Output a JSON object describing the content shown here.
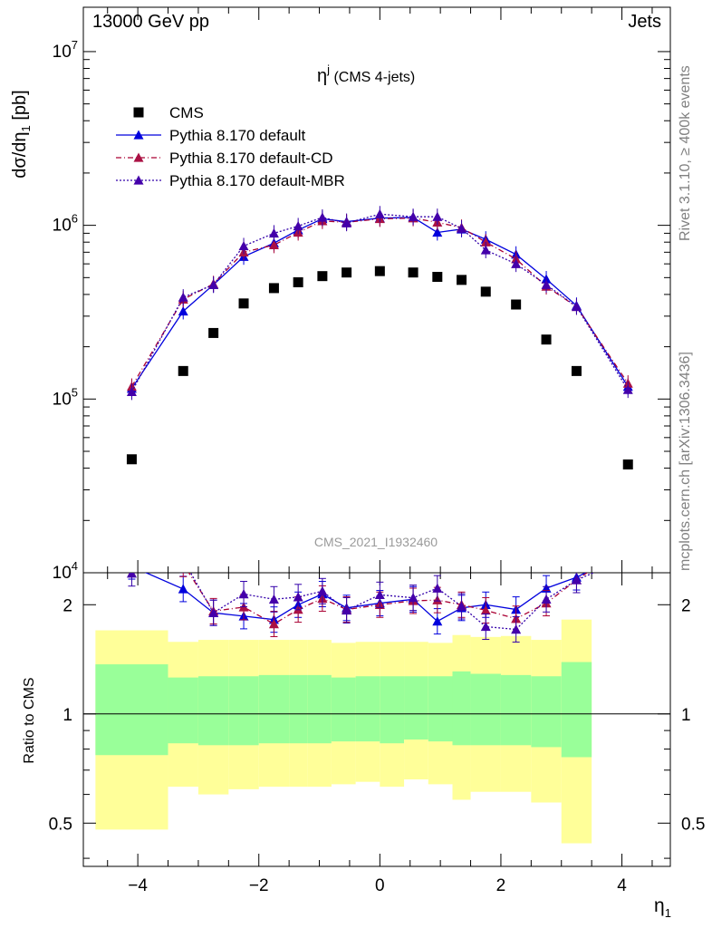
{
  "header": {
    "left": "13000 GeV pp",
    "right": "Jets"
  },
  "side": {
    "rivet": "Rivet 3.1.10, ≥ 400k events",
    "mcplots": "mcplots.cern.ch [arXiv:1306.3436]"
  },
  "chart_data": {
    "type": "scatter",
    "title": "η^j (CMS 4-jets)",
    "title_main": "η",
    "title_sup": "j",
    "title_sub": " (CMS 4-jets)",
    "analysis_id": "CMS_2021_I1932460",
    "xlabel": "η",
    "xlabel_sub": "1",
    "ylabel": "dσ/dη",
    "ylabel_sub": "1",
    "ylabel_unit": " [pb]",
    "ratio_ylabel": "Ratio to CMS",
    "xlim": [
      -4.9,
      4.8
    ],
    "ylim": [
      10000,
      18000000
    ],
    "ylog": true,
    "ratio_ylim": [
      0.38,
      2.45
    ],
    "ratio_ylog": true,
    "x_ticks": [
      "−4",
      "−2",
      "0",
      "2",
      "4"
    ],
    "y_ticks_main": [
      {
        "base": "10",
        "exp": "4"
      },
      {
        "base": "10",
        "exp": "5"
      },
      {
        "base": "10",
        "exp": "6"
      },
      {
        "base": "10",
        "exp": "7"
      }
    ],
    "y_ticks_ratio": [
      "0.5",
      "1",
      "2"
    ],
    "legend_position": "top-left",
    "x_edges": [
      -4.7,
      -3.5,
      -3.0,
      -2.5,
      -2.0,
      -1.5,
      -1.2,
      -0.8,
      -0.4,
      0.0,
      0.4,
      0.8,
      1.2,
      1.5,
      2.0,
      2.5,
      3.0,
      3.5,
      4.7
    ],
    "x": [
      -4.1,
      -3.25,
      -2.75,
      -2.25,
      -1.75,
      -1.35,
      -0.95,
      -0.55,
      0.0,
      0.55,
      0.95,
      1.35,
      1.75,
      2.25,
      2.75,
      3.25,
      4.1
    ],
    "cms": {
      "name": "CMS",
      "values": [
        45000,
        145000,
        240000,
        355000,
        435000,
        470000,
        510000,
        535000,
        545000,
        535000,
        505000,
        485000,
        415000,
        350000,
        220000,
        145000,
        42000
      ],
      "band_68_upper": [
        1.37,
        1.26,
        1.27,
        1.27,
        1.28,
        1.28,
        1.28,
        1.26,
        1.27,
        1.27,
        1.27,
        1.27,
        1.31,
        1.29,
        1.28,
        1.27,
        1.39
      ],
      "band_68_lower": [
        0.77,
        0.83,
        0.82,
        0.82,
        0.83,
        0.83,
        0.83,
        0.84,
        0.84,
        0.83,
        0.85,
        0.84,
        0.82,
        0.82,
        0.82,
        0.81,
        0.76
      ],
      "band_95_upper": [
        1.7,
        1.58,
        1.6,
        1.6,
        1.6,
        1.6,
        1.6,
        1.57,
        1.58,
        1.58,
        1.58,
        1.57,
        1.65,
        1.63,
        1.64,
        1.6,
        1.82
      ],
      "band_95_lower": [
        0.48,
        0.63,
        0.6,
        0.62,
        0.63,
        0.63,
        0.63,
        0.64,
        0.65,
        0.63,
        0.66,
        0.64,
        0.58,
        0.61,
        0.61,
        0.57,
        0.44
      ]
    },
    "series": [
      {
        "name": "Pythia 8.170 default",
        "color": "#0000dd",
        "dash": "",
        "marker_color": "#0000dd",
        "values": [
          115000,
          320000,
          455000,
          660000,
          790000,
          940000,
          1090000,
          1050000,
          1100000,
          1110000,
          910000,
          950000,
          830000,
          680000,
          490000,
          345000,
          118000
        ],
        "ratio": [
          2.55,
          2.21,
          1.9,
          1.86,
          1.82,
          2.0,
          2.14,
          1.96,
          2.02,
          2.07,
          1.8,
          1.96,
          2.0,
          1.94,
          2.22,
          2.38,
          2.81
        ]
      },
      {
        "name": "Pythia 8.170 default-CD",
        "color": "#aa0033",
        "dash": "6,3,1,3",
        "marker_color": "#aa1144",
        "values": [
          118000,
          375000,
          460000,
          700000,
          770000,
          910000,
          1060000,
          1040000,
          1090000,
          1100000,
          1040000,
          970000,
          800000,
          640000,
          445000,
          340000,
          123000
        ],
        "ratio": [
          2.62,
          2.59,
          1.92,
          1.97,
          1.77,
          1.94,
          2.08,
          1.94,
          2.0,
          2.05,
          2.06,
          2.0,
          1.93,
          1.83,
          2.02,
          2.34,
          2.93
        ]
      },
      {
        "name": "Pythia 8.170 default-MBR",
        "color": "#3300aa",
        "dash": "2,2",
        "marker_color": "#4400aa",
        "values": [
          110000,
          385000,
          455000,
          760000,
          900000,
          990000,
          1110000,
          1030000,
          1160000,
          1120000,
          1120000,
          960000,
          720000,
          600000,
          455000,
          340000,
          113000
        ],
        "ratio": [
          2.44,
          2.66,
          1.9,
          2.14,
          2.07,
          2.1,
          2.18,
          1.93,
          2.13,
          2.09,
          2.22,
          1.98,
          1.74,
          1.71,
          2.07,
          2.34,
          2.69
        ]
      }
    ]
  }
}
